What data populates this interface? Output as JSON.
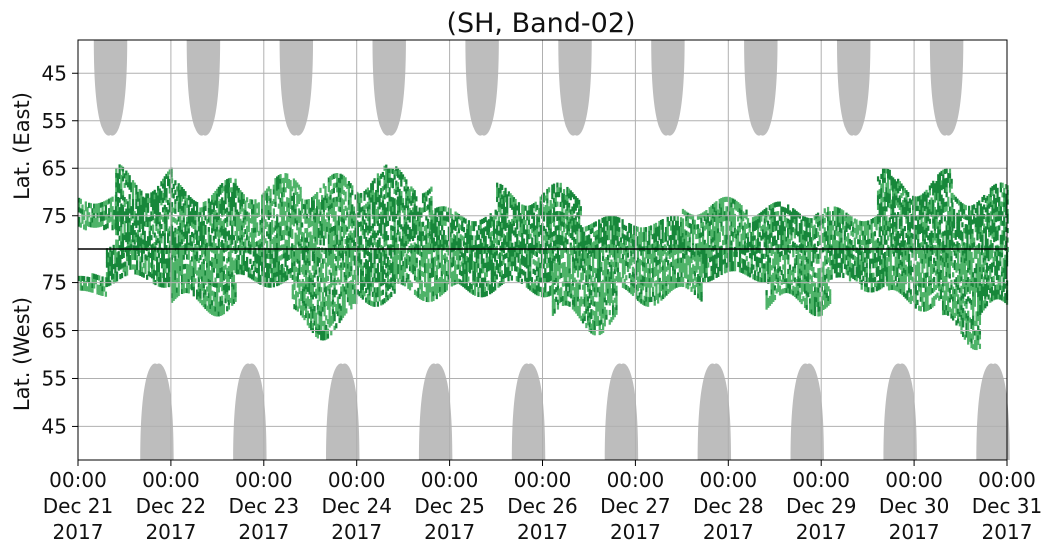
{
  "chart_data": {
    "type": "heatmap",
    "title": "(SH, Band-02)",
    "ylabel_top": "Lat. (East)",
    "ylabel_bottom": "Lat. (West)",
    "x_range": [
      "2017-12-21 00:00",
      "2017-12-31 00:00"
    ],
    "x_ticks": [
      {
        "time": "00:00",
        "date": "Dec 21",
        "year": "2017"
      },
      {
        "time": "00:00",
        "date": "Dec 22",
        "year": "2017"
      },
      {
        "time": "00:00",
        "date": "Dec 23",
        "year": "2017"
      },
      {
        "time": "00:00",
        "date": "Dec 24",
        "year": "2017"
      },
      {
        "time": "00:00",
        "date": "Dec 25",
        "year": "2017"
      },
      {
        "time": "00:00",
        "date": "Dec 26",
        "year": "2017"
      },
      {
        "time": "00:00",
        "date": "Dec 27",
        "year": "2017"
      },
      {
        "time": "00:00",
        "date": "Dec 28",
        "year": "2017"
      },
      {
        "time": "00:00",
        "date": "Dec 29",
        "year": "2017"
      },
      {
        "time": "00:00",
        "date": "Dec 30",
        "year": "2017"
      },
      {
        "time": "00:00",
        "date": "Dec 31",
        "year": "2017"
      }
    ],
    "y_ticks_east": [
      "45",
      "55",
      "65",
      "75"
    ],
    "y_ticks_west": [
      "75",
      "65",
      "55",
      "45"
    ],
    "y_tick_values_east": [
      45,
      55,
      65,
      75
    ],
    "y_tick_values_west": [
      75,
      65,
      55,
      45
    ],
    "lat_range": [
      38,
      82
    ],
    "grid": true,
    "colors": {
      "strong": "#17873a",
      "light": "#4fb369",
      "gray": "#bdbdbd",
      "grid": "#b0b0b0",
      "center_line": "#000000"
    },
    "gray_lobes_east": [
      {
        "center_day": 0.35,
        "half_width_days": 0.18,
        "min_lat": 58
      },
      {
        "center_day": 1.35,
        "half_width_days": 0.18,
        "min_lat": 58
      },
      {
        "center_day": 2.35,
        "half_width_days": 0.18,
        "min_lat": 58
      },
      {
        "center_day": 3.35,
        "half_width_days": 0.18,
        "min_lat": 58
      },
      {
        "center_day": 4.35,
        "half_width_days": 0.18,
        "min_lat": 58
      },
      {
        "center_day": 5.35,
        "half_width_days": 0.18,
        "min_lat": 58
      },
      {
        "center_day": 6.35,
        "half_width_days": 0.18,
        "min_lat": 58
      },
      {
        "center_day": 7.35,
        "half_width_days": 0.18,
        "min_lat": 58
      },
      {
        "center_day": 8.35,
        "half_width_days": 0.18,
        "min_lat": 58
      },
      {
        "center_day": 9.35,
        "half_width_days": 0.18,
        "min_lat": 58
      }
    ],
    "gray_lobes_west": [
      {
        "center_day": 0.85,
        "half_width_days": 0.18,
        "min_lat": 58
      },
      {
        "center_day": 1.85,
        "half_width_days": 0.18,
        "min_lat": 58
      },
      {
        "center_day": 2.85,
        "half_width_days": 0.18,
        "min_lat": 58
      },
      {
        "center_day": 3.85,
        "half_width_days": 0.18,
        "min_lat": 58
      },
      {
        "center_day": 4.85,
        "half_width_days": 0.18,
        "min_lat": 58
      },
      {
        "center_day": 5.85,
        "half_width_days": 0.18,
        "min_lat": 58
      },
      {
        "center_day": 6.85,
        "half_width_days": 0.18,
        "min_lat": 58
      },
      {
        "center_day": 7.85,
        "half_width_days": 0.18,
        "min_lat": 58
      },
      {
        "center_day": 8.85,
        "half_width_days": 0.18,
        "min_lat": 58
      },
      {
        "center_day": 9.85,
        "half_width_days": 0.18,
        "min_lat": 58
      }
    ],
    "green_regions": [
      {
        "hemisphere": "east",
        "day_start": 0.0,
        "day_end": 0.4,
        "lat_min": 70,
        "lat_max": 77,
        "level": "light"
      },
      {
        "hemisphere": "east",
        "day_start": 0.4,
        "day_end": 1.0,
        "lat_min": 64,
        "lat_max": 82,
        "level": "strong"
      },
      {
        "hemisphere": "east",
        "day_start": 1.0,
        "day_end": 1.7,
        "lat_min": 67,
        "lat_max": 82,
        "level": "strong"
      },
      {
        "hemisphere": "east",
        "day_start": 1.7,
        "day_end": 2.4,
        "lat_min": 66,
        "lat_max": 82,
        "level": "light"
      },
      {
        "hemisphere": "east",
        "day_start": 2.4,
        "day_end": 3.0,
        "lat_min": 66,
        "lat_max": 82,
        "level": "light"
      },
      {
        "hemisphere": "east",
        "day_start": 3.0,
        "day_end": 3.8,
        "lat_min": 64,
        "lat_max": 82,
        "level": "strong"
      },
      {
        "hemisphere": "east",
        "day_start": 3.8,
        "day_end": 4.5,
        "lat_min": 73,
        "lat_max": 82,
        "level": "strong"
      },
      {
        "hemisphere": "east",
        "day_start": 4.5,
        "day_end": 5.4,
        "lat_min": 68,
        "lat_max": 82,
        "level": "strong"
      },
      {
        "hemisphere": "east",
        "day_start": 5.4,
        "day_end": 6.5,
        "lat_min": 75,
        "lat_max": 82,
        "level": "strong"
      },
      {
        "hemisphere": "east",
        "day_start": 6.5,
        "day_end": 7.2,
        "lat_min": 71,
        "lat_max": 82,
        "level": "light"
      },
      {
        "hemisphere": "east",
        "day_start": 7.2,
        "day_end": 7.9,
        "lat_min": 72,
        "lat_max": 82,
        "level": "strong"
      },
      {
        "hemisphere": "east",
        "day_start": 7.9,
        "day_end": 8.6,
        "lat_min": 73,
        "lat_max": 82,
        "level": "light"
      },
      {
        "hemisphere": "east",
        "day_start": 8.6,
        "day_end": 9.4,
        "lat_min": 65,
        "lat_max": 82,
        "level": "strong"
      },
      {
        "hemisphere": "east",
        "day_start": 9.4,
        "day_end": 10.0,
        "lat_min": 68,
        "lat_max": 82,
        "level": "strong"
      },
      {
        "hemisphere": "west",
        "day_start": 0.0,
        "day_end": 0.3,
        "lat_min": 72,
        "lat_max": 76,
        "level": "light"
      },
      {
        "hemisphere": "west",
        "day_start": 0.3,
        "day_end": 1.0,
        "lat_min": 74,
        "lat_max": 82,
        "level": "strong"
      },
      {
        "hemisphere": "west",
        "day_start": 1.0,
        "day_end": 1.7,
        "lat_min": 68,
        "lat_max": 82,
        "level": "light"
      },
      {
        "hemisphere": "west",
        "day_start": 1.7,
        "day_end": 2.3,
        "lat_min": 74,
        "lat_max": 82,
        "level": "strong"
      },
      {
        "hemisphere": "west",
        "day_start": 2.3,
        "day_end": 3.0,
        "lat_min": 63,
        "lat_max": 82,
        "level": "light"
      },
      {
        "hemisphere": "west",
        "day_start": 3.0,
        "day_end": 3.4,
        "lat_min": 70,
        "lat_max": 82,
        "level": "strong"
      },
      {
        "hemisphere": "west",
        "day_start": 3.4,
        "day_end": 4.1,
        "lat_min": 71,
        "lat_max": 82,
        "level": "light"
      },
      {
        "hemisphere": "west",
        "day_start": 4.1,
        "day_end": 5.1,
        "lat_min": 72,
        "lat_max": 82,
        "level": "strong"
      },
      {
        "hemisphere": "west",
        "day_start": 5.1,
        "day_end": 5.8,
        "lat_min": 64,
        "lat_max": 82,
        "level": "light"
      },
      {
        "hemisphere": "west",
        "day_start": 5.8,
        "day_end": 6.7,
        "lat_min": 70,
        "lat_max": 82,
        "level": "light"
      },
      {
        "hemisphere": "west",
        "day_start": 6.7,
        "day_end": 7.4,
        "lat_min": 75,
        "lat_max": 82,
        "level": "strong"
      },
      {
        "hemisphere": "west",
        "day_start": 7.4,
        "day_end": 8.1,
        "lat_min": 68,
        "lat_max": 82,
        "level": "light"
      },
      {
        "hemisphere": "west",
        "day_start": 8.1,
        "day_end": 8.7,
        "lat_min": 73,
        "lat_max": 82,
        "level": "strong"
      },
      {
        "hemisphere": "west",
        "day_start": 8.7,
        "day_end": 9.3,
        "lat_min": 69,
        "lat_max": 82,
        "level": "light"
      },
      {
        "hemisphere": "west",
        "day_start": 9.3,
        "day_end": 9.7,
        "lat_min": 61,
        "lat_max": 82,
        "level": "light"
      },
      {
        "hemisphere": "west",
        "day_start": 9.7,
        "day_end": 10.0,
        "lat_min": 66,
        "lat_max": 82,
        "level": "strong"
      }
    ]
  }
}
